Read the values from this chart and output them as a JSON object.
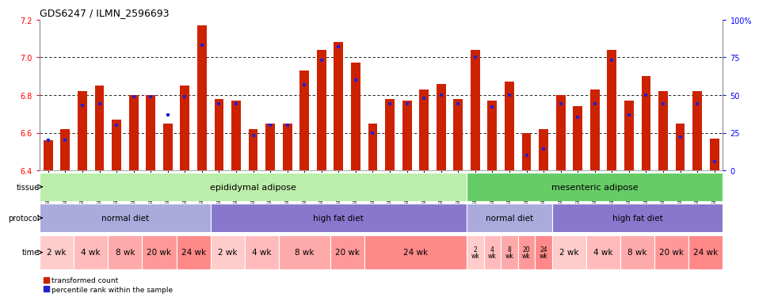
{
  "title": "GDS6247 / ILMN_2596693",
  "samples": [
    "GSM971546",
    "GSM971547",
    "GSM971548",
    "GSM971549",
    "GSM971550",
    "GSM971551",
    "GSM971552",
    "GSM971553",
    "GSM971554",
    "GSM971555",
    "GSM971556",
    "GSM971557",
    "GSM971558",
    "GSM971559",
    "GSM971560",
    "GSM971561",
    "GSM971562",
    "GSM971563",
    "GSM971564",
    "GSM971565",
    "GSM971566",
    "GSM971567",
    "GSM971568",
    "GSM971569",
    "GSM971570",
    "GSM971571",
    "GSM971572",
    "GSM971573",
    "GSM971574",
    "GSM971575",
    "GSM971576",
    "GSM971577",
    "GSM971578",
    "GSM971579",
    "GSM971580",
    "GSM971581",
    "GSM971582",
    "GSM971583",
    "GSM971584",
    "GSM971585"
  ],
  "bar_values": [
    6.56,
    6.62,
    6.82,
    6.85,
    6.67,
    6.8,
    6.8,
    6.65,
    6.85,
    7.17,
    6.78,
    6.77,
    6.62,
    6.65,
    6.65,
    6.93,
    7.04,
    7.08,
    6.97,
    6.65,
    6.78,
    6.77,
    6.83,
    6.86,
    6.78,
    7.04,
    6.77,
    6.87,
    6.6,
    6.62,
    6.8,
    6.74,
    6.83,
    7.04,
    6.77,
    6.9,
    6.82,
    6.65,
    6.82,
    6.57
  ],
  "percentile_values": [
    0.2,
    0.2,
    0.43,
    0.44,
    0.3,
    0.49,
    0.49,
    0.37,
    0.49,
    0.83,
    0.44,
    0.44,
    0.23,
    0.3,
    0.3,
    0.57,
    0.73,
    0.82,
    0.6,
    0.25,
    0.44,
    0.44,
    0.48,
    0.5,
    0.44,
    0.75,
    0.42,
    0.5,
    0.1,
    0.14,
    0.44,
    0.35,
    0.44,
    0.73,
    0.37,
    0.5,
    0.44,
    0.22,
    0.44,
    0.06
  ],
  "ymin": 6.4,
  "ymax": 7.2,
  "yticks": [
    6.4,
    6.6,
    6.8,
    7.0,
    7.2
  ],
  "right_yticks": [
    0,
    25,
    50,
    75,
    100
  ],
  "bar_color": "#cc2200",
  "blue_color": "#2222cc",
  "chart_bg": "#ffffff",
  "tissue_groups": [
    {
      "label": "epididymal adipose",
      "start": 0,
      "end": 25,
      "color": "#bbeeaa"
    },
    {
      "label": "mesenteric adipose",
      "start": 25,
      "end": 40,
      "color": "#66cc66"
    }
  ],
  "protocol_defs": [
    {
      "label": "normal diet",
      "start": 0,
      "end": 10,
      "color": "#aaaadd"
    },
    {
      "label": "high fat diet",
      "start": 10,
      "end": 25,
      "color": "#8877cc"
    },
    {
      "label": "normal diet",
      "start": 25,
      "end": 30,
      "color": "#aaaadd"
    },
    {
      "label": "high fat diet",
      "start": 30,
      "end": 40,
      "color": "#8877cc"
    }
  ],
  "time_groups": [
    {
      "label": "2 wk",
      "start": 0,
      "end": 2,
      "color": "#ffcccc"
    },
    {
      "label": "4 wk",
      "start": 2,
      "end": 4,
      "color": "#ffbbbb"
    },
    {
      "label": "8 wk",
      "start": 4,
      "end": 6,
      "color": "#ffaaaa"
    },
    {
      "label": "20 wk",
      "start": 6,
      "end": 8,
      "color": "#ff9999"
    },
    {
      "label": "24 wk",
      "start": 8,
      "end": 10,
      "color": "#ff8888"
    },
    {
      "label": "2 wk",
      "start": 10,
      "end": 12,
      "color": "#ffcccc"
    },
    {
      "label": "4 wk",
      "start": 12,
      "end": 14,
      "color": "#ffbbbb"
    },
    {
      "label": "8 wk",
      "start": 14,
      "end": 17,
      "color": "#ffaaaa"
    },
    {
      "label": "20 wk",
      "start": 17,
      "end": 19,
      "color": "#ff9999"
    },
    {
      "label": "24 wk",
      "start": 19,
      "end": 25,
      "color": "#ff8888"
    },
    {
      "label": "2 wk",
      "start": 25,
      "end": 26,
      "color": "#ffcccc"
    },
    {
      "label": "4 wk",
      "start": 26,
      "end": 27,
      "color": "#ffbbbb"
    },
    {
      "label": "8 wk",
      "start": 27,
      "end": 28,
      "color": "#ffaaaa"
    },
    {
      "label": "20 wk",
      "start": 28,
      "end": 29,
      "color": "#ff9999"
    },
    {
      "label": "24 wk",
      "start": 29,
      "end": 30,
      "color": "#ff8888"
    },
    {
      "label": "2 wk",
      "start": 30,
      "end": 32,
      "color": "#ffcccc"
    },
    {
      "label": "4 wk",
      "start": 32,
      "end": 34,
      "color": "#ffbbbb"
    },
    {
      "label": "8 wk",
      "start": 34,
      "end": 36,
      "color": "#ffaaaa"
    },
    {
      "label": "20 wk",
      "start": 36,
      "end": 38,
      "color": "#ff9999"
    },
    {
      "label": "24 wk",
      "start": 38,
      "end": 40,
      "color": "#ff8888"
    }
  ]
}
